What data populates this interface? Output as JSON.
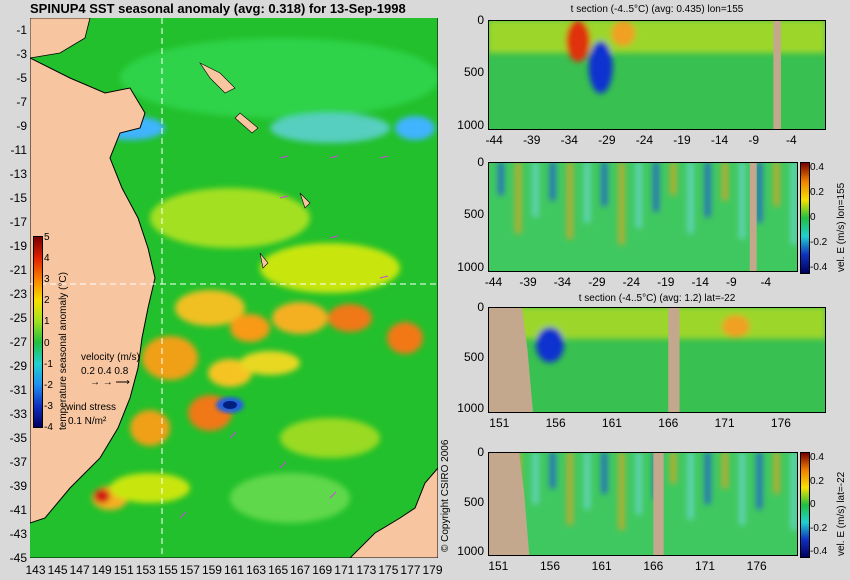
{
  "map": {
    "title": "SPINUP4 SST seasonal anomaly (avg: 0.318) for 13-Sep-1998",
    "colorbar_label": "temperature seasonal anomaly (°C)",
    "velocity_label": "velocity (m/s)",
    "velocity_scale": "0.2 0.4 0.8",
    "wind_label": "wind stress",
    "wind_scale": "0.1 N/m²",
    "copyright": "© Copyright CSIRO 2006",
    "lat_ticks": [
      "-1",
      "-3",
      "-5",
      "-7",
      "-9",
      "-11",
      "-13",
      "-15",
      "-17",
      "-19",
      "-21",
      "-23",
      "-25",
      "-27",
      "-29",
      "-31",
      "-33",
      "-35",
      "-37",
      "-39",
      "-41",
      "-43",
      "-45"
    ],
    "lon_ticks": [
      "143",
      "145",
      "147",
      "149",
      "151",
      "153",
      "155",
      "157",
      "159",
      "161",
      "163",
      "165",
      "167",
      "169",
      "171",
      "173",
      "175",
      "177",
      "179"
    ],
    "colorbar_ticks": [
      "5",
      "4",
      "3",
      "2",
      "1",
      "0",
      "-1",
      "-2",
      "-3",
      "-4"
    ],
    "colors": {
      "land": "#f7c6a0",
      "ocean": "#1fbf2f",
      "sea_section": "#c4a88e"
    }
  },
  "chart_data": [
    {
      "type": "heatmap",
      "title": "SPINUP4 SST seasonal anomaly (avg: 0.318) for 13-Sep-1998",
      "xlabel": "",
      "ylabel": "",
      "x": [
        143,
        145,
        147,
        149,
        151,
        153,
        155,
        157,
        159,
        161,
        163,
        165,
        167,
        169,
        171,
        173,
        175,
        177,
        179
      ],
      "y": [
        -1,
        -3,
        -5,
        -7,
        -9,
        -11,
        -13,
        -15,
        -17,
        -19,
        -21,
        -23,
        -25,
        -27,
        -29,
        -31,
        -33,
        -35,
        -37,
        -39,
        -41,
        -43,
        -45
      ],
      "xlim": [
        142.5,
        179.5
      ],
      "ylim": [
        -45,
        0
      ],
      "colorbar": {
        "label": "temperature seasonal anomaly (°C)",
        "range": [
          -4,
          5
        ]
      },
      "section_lines": {
        "lon": 155,
        "lat": -22
      }
    },
    {
      "type": "heatmap",
      "title": "t section (-4..5°C) (avg: 0.435) lon=155",
      "x": [
        -44,
        -39,
        -34,
        -29,
        -24,
        -19,
        -14,
        -9,
        -4
      ],
      "y": [
        0,
        500,
        1000
      ],
      "xlim": [
        -45,
        0
      ],
      "ylim": [
        1050,
        0
      ],
      "features": [
        {
          "x": -33,
          "depth_top": 0,
          "depth_bottom": 400,
          "value": 4
        },
        {
          "x": -30,
          "depth_top": 200,
          "depth_bottom": 700,
          "value": -4
        },
        {
          "x": -27,
          "depth_top": 0,
          "depth_bottom": 250,
          "value": 3
        }
      ]
    },
    {
      "type": "heatmap",
      "title": "",
      "x": [
        -44,
        -39,
        -34,
        -29,
        -24,
        -19,
        -14,
        -9,
        -4
      ],
      "y": [
        0,
        500,
        1000
      ],
      "xlim": [
        -45,
        0
      ],
      "ylim": [
        1050,
        0
      ],
      "colorbar": {
        "label": "vel. E (m/s) lon=155",
        "ticks": [
          "0.4",
          "0.2",
          "0",
          "-0.2",
          "-0.4"
        ]
      }
    },
    {
      "type": "heatmap",
      "title": "t section (-4..5°C) (avg: 1.2) lat=-22",
      "x": [
        151,
        156,
        161,
        166,
        171,
        176
      ],
      "y": [
        0,
        500,
        1000
      ],
      "xlim": [
        150,
        180
      ],
      "ylim": [
        1050,
        0
      ],
      "features": [
        {
          "x": 155.5,
          "depth_top": 200,
          "depth_bottom": 550,
          "value": -4
        },
        {
          "x": 172,
          "depth_top": 80,
          "depth_bottom": 300,
          "value": 3.5
        }
      ]
    },
    {
      "type": "heatmap",
      "title": "",
      "x": [
        151,
        156,
        161,
        166,
        171,
        176
      ],
      "y": [
        0,
        500,
        1000
      ],
      "xlim": [
        150,
        180
      ],
      "ylim": [
        1050,
        0
      ],
      "colorbar": {
        "label": "vel. E (m/s) lat=-22",
        "ticks": [
          "0.4",
          "0.2",
          "0",
          "-0.2",
          "-0.4"
        ]
      }
    }
  ]
}
